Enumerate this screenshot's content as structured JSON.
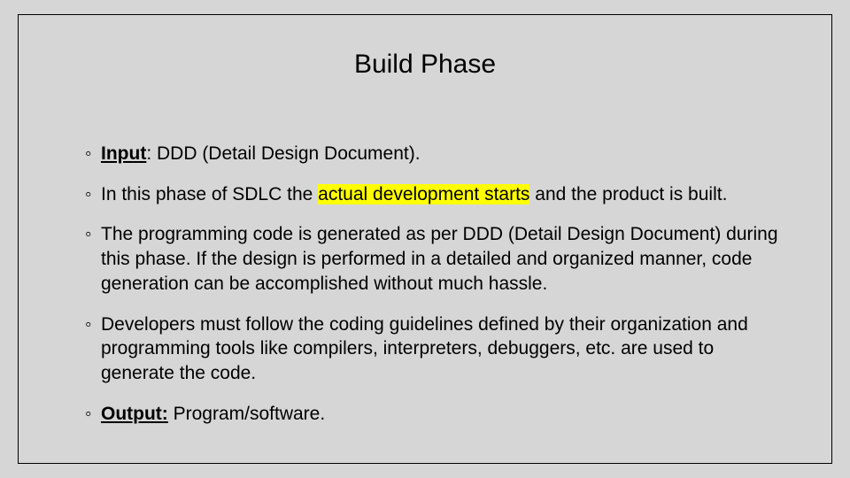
{
  "slide": {
    "background_color": "#d6d6d6",
    "border_color": "#000000",
    "title": {
      "text": "Build Phase",
      "fontsize": 30,
      "color": "#000000",
      "weight": "400"
    },
    "bullets": {
      "b1": {
        "label": "Input",
        "label_style": "bold underline",
        "rest": ": DDD (Detail Design Document)."
      },
      "b2": {
        "pre": "In this phase of SDLC the ",
        "highlight": "actual development starts",
        "highlight_bg": "#ffff00",
        "post": " and the product is built."
      },
      "b3": {
        "text": "The programming code is generated as per DDD (Detail Design Document) during this phase. If the design is performed in a detailed and organized manner, code generation can be accomplished without much hassle."
      },
      "b4": {
        "text": "Developers must follow the coding guidelines defined by their organization and programming tools like compilers, interpreters, debuggers, etc. are used to generate the code."
      },
      "b5": {
        "label": "Output:",
        "label_style": "bold underline",
        "rest": " Program/software."
      }
    },
    "body_fontsize": 21,
    "body_color": "#000000",
    "bullet_glyph": "◦"
  }
}
